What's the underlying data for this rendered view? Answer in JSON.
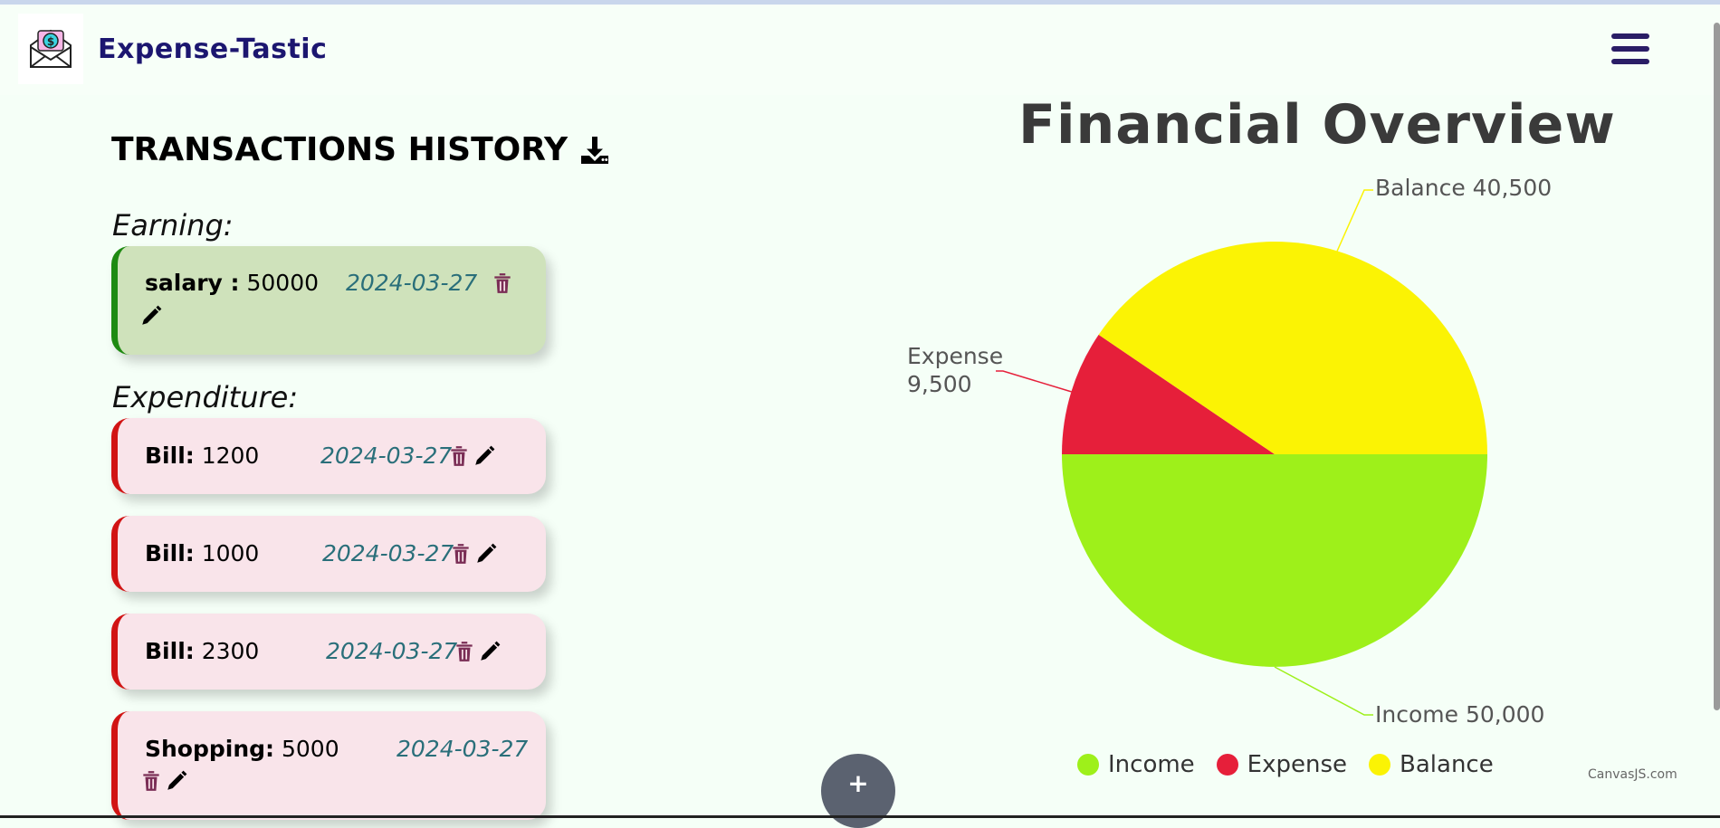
{
  "header": {
    "title": "Expense-Tastic"
  },
  "history": {
    "title": "TRANSACTIONS HISTORY",
    "earning_label": "Earning:",
    "expenditure_label": "Expenditure:"
  },
  "earnings": [
    {
      "name": "salary :",
      "amount": "50000",
      "date": "2024-03-27"
    }
  ],
  "expenditures": [
    {
      "name": "Bill:",
      "amount": "1200",
      "date": "2024-03-27"
    },
    {
      "name": "Bill:",
      "amount": "1000",
      "date": "2024-03-27"
    },
    {
      "name": "Bill:",
      "amount": "2300",
      "date": "2024-03-27"
    },
    {
      "name": "Shopping:",
      "amount": "5000",
      "date": "2024-03-27"
    }
  ],
  "add_button": "+",
  "chart_data": {
    "type": "pie",
    "title": "Financial Overview",
    "slices": [
      {
        "name": "Income",
        "value": 50000,
        "label": "Income 50,000",
        "color": "#9ef01a"
      },
      {
        "name": "Expense",
        "value": 9500,
        "label": "Expense 9,500",
        "color": "#e61f3a"
      },
      {
        "name": "Balance",
        "value": 40500,
        "label": "Balance 40,500",
        "color": "#fbf304"
      }
    ],
    "legend": [
      "Income",
      "Expense",
      "Balance"
    ],
    "legend_position": "bottom",
    "credit": "CanvasJS.com"
  },
  "colors": {
    "earning_accent": "#1e8a12",
    "expense_accent": "#d11414",
    "title": "#1c1670"
  }
}
